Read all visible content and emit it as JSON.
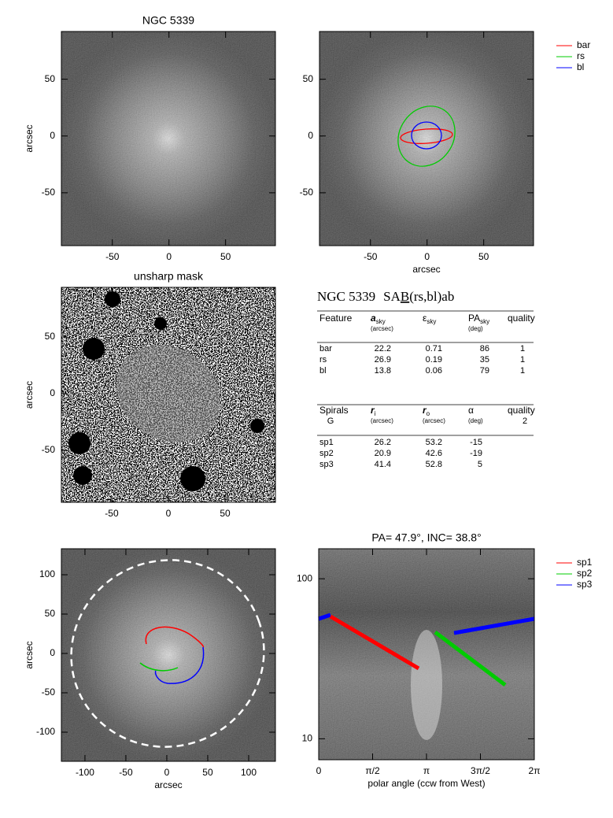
{
  "panels": [
    {
      "title": "NGC 5339",
      "ylabel": "arcsec",
      "xlim": [
        -95,
        94
      ],
      "ylim": [
        -96.5,
        92
      ],
      "xticks": [
        -50,
        0,
        50
      ],
      "yticks": [
        -50,
        0,
        50
      ]
    },
    {
      "xlabel": "arcsec",
      "xlim": [
        -95,
        94
      ],
      "ylim": [
        -96.5,
        92
      ],
      "xticks": [
        -50,
        0,
        50
      ],
      "yticks": [
        -50,
        0,
        50
      ],
      "legend": [
        {
          "name": "bar",
          "color": "#ff0000"
        },
        {
          "name": "rs",
          "color": "#00cc00"
        },
        {
          "name": "bl",
          "color": "#0000ff"
        }
      ]
    },
    {
      "title": "unsharp mask",
      "ylabel": "arcsec",
      "xlim": [
        -94.4,
        94.4
      ],
      "ylim": [
        -95.8,
        93.7
      ],
      "xticks": [
        -50,
        0,
        50
      ],
      "yticks": [
        -50,
        0,
        50
      ]
    },
    {
      "xlabel": "arcsec",
      "ylabel": "arcsec",
      "xlim": [
        -128.8,
        132.7
      ],
      "ylim": [
        -137,
        133
      ],
      "xticks": [
        -100,
        -50,
        0,
        50,
        100
      ],
      "yticks": [
        -100,
        -50,
        0,
        50,
        100
      ]
    },
    {
      "title": "PA= 47.9°, INC= 38.8°",
      "xlabel": "polar angle (ccw from West)",
      "xlim": [
        0,
        6.2832
      ],
      "ylim": [
        7.4,
        154
      ],
      "log_y": true,
      "xticks": [
        0,
        {
          "value": 1.5708,
          "label": "π/2"
        },
        {
          "value": 3.1416,
          "label": "π"
        },
        {
          "value": 4.7124,
          "label": "3π/2"
        },
        {
          "value": 6.2832,
          "label": "2π"
        }
      ],
      "yticks": [
        10,
        100
      ],
      "legend": [
        {
          "name": "sp1",
          "color": "#ff0000"
        },
        {
          "name": "sp2",
          "color": "#00cc00"
        },
        {
          "name": "sp3",
          "color": "#0000ff"
        }
      ]
    }
  ],
  "table": {
    "title": {
      "name": "NGC 5339",
      "pre": "SA",
      "bar": "B",
      "post": "(rs,bl)ab"
    },
    "features": {
      "header": [
        {
          "main": "Feature"
        },
        {
          "main": "a",
          "sub": "sky",
          "unit": "(arcsec)"
        },
        {
          "main": "ε",
          "sub": "sky"
        },
        {
          "main": "PA",
          "sub": "sky",
          "unit": "(deg)"
        },
        {
          "main": "quality"
        }
      ],
      "rows": [
        [
          "bar",
          22.2,
          0.71,
          86,
          1
        ],
        [
          "rs",
          26.9,
          0.19,
          35,
          1
        ],
        [
          "bl",
          13.8,
          0.06,
          79,
          1
        ]
      ]
    },
    "spirals": {
      "header": [
        {
          "main": "Spirals",
          "unit": "G"
        },
        {
          "main": "r",
          "sub": "i",
          "unit": "(arcsec)"
        },
        {
          "main": "r",
          "sub": "o",
          "unit": "(arcsec)"
        },
        {
          "main": "α",
          "unit": "(deg)"
        },
        {
          "main": "quality",
          "unit": 2
        }
      ],
      "rows": [
        [
          "sp1",
          26.2,
          53.2,
          -15
        ],
        [
          "sp2",
          20.9,
          42.6,
          -19
        ],
        [
          "sp3",
          41.4,
          52.8,
          5
        ]
      ]
    }
  }
}
